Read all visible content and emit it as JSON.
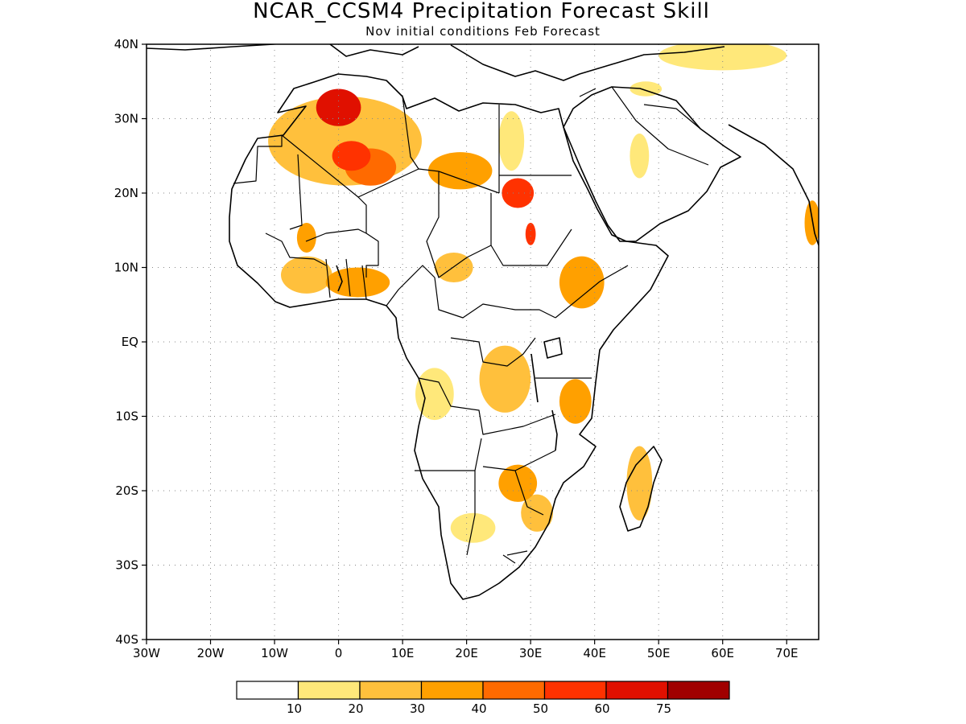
{
  "map": {
    "title": "NCAR_CCSM4 Precipitation Forecast Skill",
    "subtitle": "Nov initial conditions  Feb Forecast",
    "lon_range": [
      -30,
      75
    ],
    "lat_range": [
      -40,
      40
    ],
    "grid": "dotted",
    "lon_ticks": [
      {
        "lon": -30,
        "label": "30W"
      },
      {
        "lon": -20,
        "label": "20W"
      },
      {
        "lon": -10,
        "label": "10W"
      },
      {
        "lon": 0,
        "label": "0"
      },
      {
        "lon": 10,
        "label": "10E"
      },
      {
        "lon": 20,
        "label": "20E"
      },
      {
        "lon": 30,
        "label": "30E"
      },
      {
        "lon": 40,
        "label": "40E"
      },
      {
        "lon": 50,
        "label": "50E"
      },
      {
        "lon": 60,
        "label": "60E"
      },
      {
        "lon": 70,
        "label": "70E"
      }
    ],
    "lat_ticks": [
      {
        "lat": 40,
        "label": "40N"
      },
      {
        "lat": 30,
        "label": "30N"
      },
      {
        "lat": 20,
        "label": "20N"
      },
      {
        "lat": 10,
        "label": "10N"
      },
      {
        "lat": 0,
        "label": "EQ"
      },
      {
        "lat": -10,
        "label": "10S"
      },
      {
        "lat": -20,
        "label": "20S"
      },
      {
        "lat": -30,
        "label": "30S"
      },
      {
        "lat": -40,
        "label": "40S"
      }
    ]
  },
  "colorbar": {
    "colors": [
      "#ffffff",
      "#ffe87a",
      "#ffc03c",
      "#ffa000",
      "#ff6a00",
      "#ff3200",
      "#e01000",
      "#a00000"
    ],
    "labels": [
      "10",
      "20",
      "30",
      "40",
      "50",
      "60",
      "75"
    ]
  },
  "chart_data": {
    "type": "heatmap",
    "title": "NCAR_CCSM4 Precipitation Forecast Skill",
    "subtitle": "Nov initial conditions  Feb Forecast",
    "xlim": [
      -30,
      75
    ],
    "ylim": [
      -40,
      40
    ],
    "levels": [
      10,
      20,
      30,
      40,
      50,
      60,
      75
    ],
    "skill_regions": [
      {
        "lon": 1,
        "lat": 27,
        "rx": 12,
        "ry": 6,
        "value": 22
      },
      {
        "lon": 0,
        "lat": 31.5,
        "rx": 3.5,
        "ry": 2.5,
        "value": 62
      },
      {
        "lon": 2,
        "lat": 25,
        "rx": 3,
        "ry": 2,
        "value": 58
      },
      {
        "lon": 5,
        "lat": 23.5,
        "rx": 4,
        "ry": 2.5,
        "value": 45
      },
      {
        "lon": 19,
        "lat": 23,
        "rx": 5,
        "ry": 2.5,
        "value": 35
      },
      {
        "lon": 28,
        "lat": 20,
        "rx": 2.5,
        "ry": 2,
        "value": 55
      },
      {
        "lon": 30,
        "lat": 14.5,
        "rx": 0.8,
        "ry": 1.5,
        "value": 55
      },
      {
        "lon": 27,
        "lat": 27,
        "rx": 2,
        "ry": 4,
        "value": 15
      },
      {
        "lon": -5,
        "lat": 14,
        "rx": 1.5,
        "ry": 2,
        "value": 32
      },
      {
        "lon": -5,
        "lat": 9,
        "rx": 4,
        "ry": 2.5,
        "value": 25
      },
      {
        "lon": 3,
        "lat": 8,
        "rx": 5,
        "ry": 2,
        "value": 30
      },
      {
        "lon": 18,
        "lat": 10,
        "rx": 3,
        "ry": 2,
        "value": 25
      },
      {
        "lon": 38,
        "lat": 8,
        "rx": 3.5,
        "ry": 3.5,
        "value": 35
      },
      {
        "lon": 26,
        "lat": -5,
        "rx": 4,
        "ry": 4.5,
        "value": 28
      },
      {
        "lon": 15,
        "lat": -7,
        "rx": 3,
        "ry": 3.5,
        "value": 18
      },
      {
        "lon": 37,
        "lat": -8,
        "rx": 2.5,
        "ry": 3,
        "value": 30
      },
      {
        "lon": 28,
        "lat": -19,
        "rx": 3,
        "ry": 2.5,
        "value": 30
      },
      {
        "lon": 31,
        "lat": -23,
        "rx": 2.5,
        "ry": 2.5,
        "value": 22
      },
      {
        "lon": 47,
        "lat": -19,
        "rx": 2,
        "ry": 5,
        "value": 25
      },
      {
        "lon": 21,
        "lat": -25,
        "rx": 3.5,
        "ry": 2,
        "value": 14
      },
      {
        "lon": 60,
        "lat": 38.5,
        "rx": 10,
        "ry": 2,
        "value": 15
      },
      {
        "lon": 74,
        "lat": 16,
        "rx": 1.2,
        "ry": 3,
        "value": 32
      },
      {
        "lon": 48,
        "lat": 34,
        "rx": 2.5,
        "ry": 1,
        "value": 12
      },
      {
        "lon": 47,
        "lat": 25,
        "rx": 1.5,
        "ry": 3,
        "value": 12
      }
    ]
  }
}
